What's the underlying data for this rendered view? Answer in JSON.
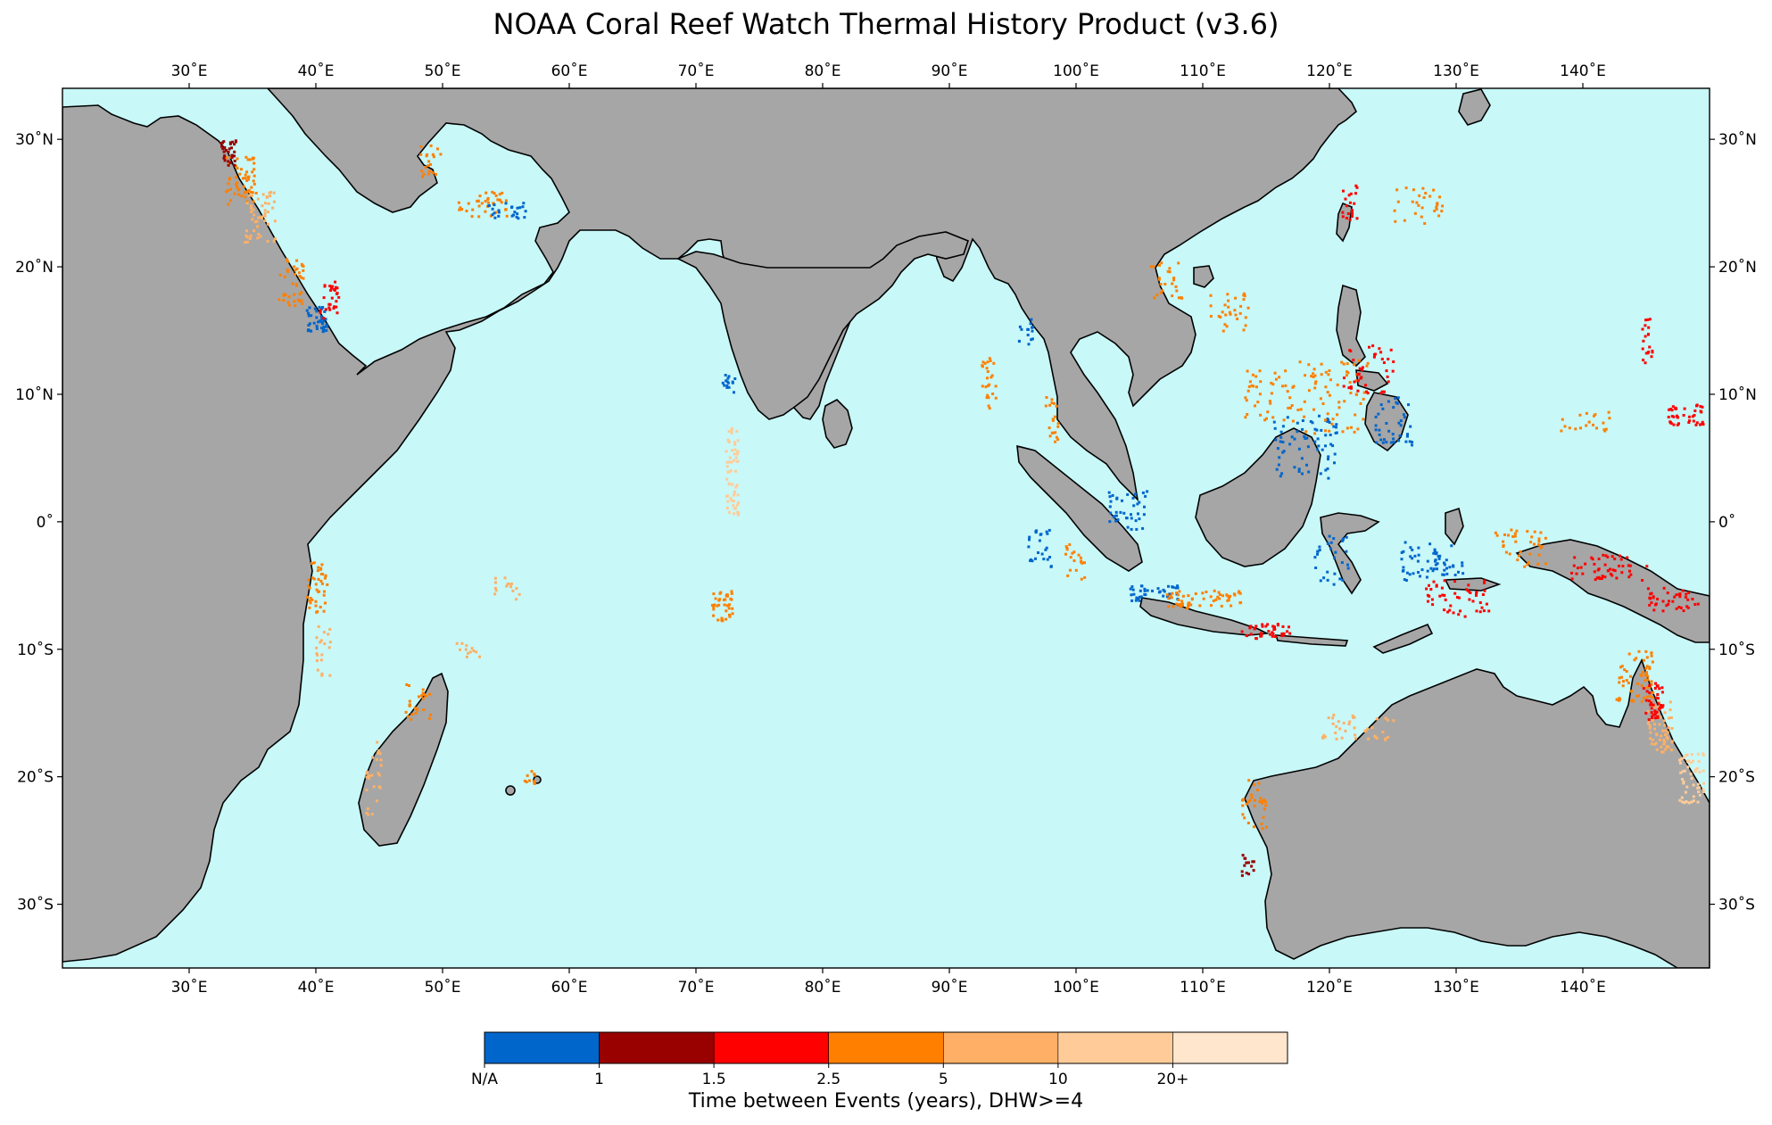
{
  "title": "NOAA Coral Reef Watch Thermal History Product (v3.6)",
  "map": {
    "projection": "PlateCarree",
    "extent": {
      "lon": [
        20,
        150
      ],
      "lat": [
        -35,
        34
      ]
    },
    "lon_ticks": [
      {
        "value": 30,
        "label": "30˚E"
      },
      {
        "value": 40,
        "label": "40˚E"
      },
      {
        "value": 50,
        "label": "50˚E"
      },
      {
        "value": 60,
        "label": "60˚E"
      },
      {
        "value": 70,
        "label": "70˚E"
      },
      {
        "value": 80,
        "label": "80˚E"
      },
      {
        "value": 90,
        "label": "90˚E"
      },
      {
        "value": 100,
        "label": "100˚E"
      },
      {
        "value": 110,
        "label": "110˚E"
      },
      {
        "value": 120,
        "label": "120˚E"
      },
      {
        "value": 130,
        "label": "130˚E"
      },
      {
        "value": 140,
        "label": "140˚E"
      }
    ],
    "lat_ticks": [
      {
        "value": 30,
        "label": "30˚N"
      },
      {
        "value": 20,
        "label": "20˚N"
      },
      {
        "value": 10,
        "label": "10˚N"
      },
      {
        "value": 0,
        "label": "0˚"
      },
      {
        "value": -10,
        "label": "10˚S"
      },
      {
        "value": -20,
        "label": "20˚S"
      },
      {
        "value": -30,
        "label": "30˚S"
      }
    ],
    "colors": {
      "ocean": "#c8f8f8",
      "land": "#a6a6a6",
      "coast": "#000000"
    }
  },
  "colorbar": {
    "label": "Time between Events (years), DHW>=4",
    "bins": [
      {
        "color": "#0066cc",
        "tick": "N/A"
      },
      {
        "color": "#990000",
        "tick": "1"
      },
      {
        "color": "#ff0000",
        "tick": "1.5"
      },
      {
        "color": "#ff8000",
        "tick": "2.5"
      },
      {
        "color": "#ffb066",
        "tick": "5"
      },
      {
        "color": "#ffcc99",
        "tick": "10"
      },
      {
        "color": "#ffe6cc",
        "tick": "20+"
      }
    ]
  }
}
